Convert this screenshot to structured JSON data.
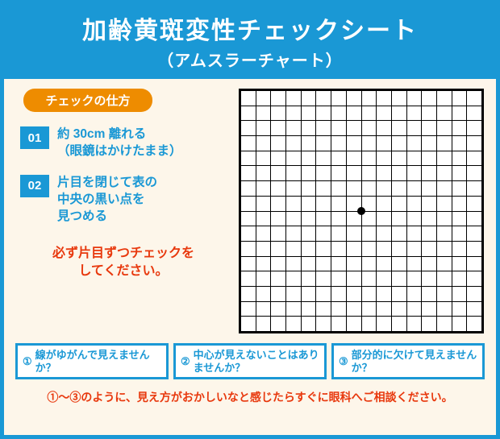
{
  "header": {
    "title": "加齢黄斑変性チェックシート",
    "subtitle": "（アムスラーチャート）"
  },
  "instructions": {
    "section_label": "チェックの仕方",
    "steps": [
      {
        "num": "01",
        "text": "約 30cm 離れる\n（眼鏡はかけたまま）"
      },
      {
        "num": "02",
        "text": "片目を閉じて表の\n中央の黒い点を\n見つめる"
      }
    ],
    "warning": "必ず片目ずつチェックを\nしてください。"
  },
  "chart": {
    "type": "grid",
    "rows": 16,
    "cols": 16,
    "background_color": "#ffffff",
    "line_color": "#000000",
    "center_dot_color": "#000000",
    "center_dot_size": 10
  },
  "questions": [
    {
      "num": "①",
      "text": "線がゆがんで見えませんか？"
    },
    {
      "num": "②",
      "text": "中心が見えないことはありませんか？"
    },
    {
      "num": "③",
      "text": "部分的に欠けて見えませんか？"
    }
  ],
  "footer": "①～③のように、見え方がおかしいなと感じたらすぐに眼科へご相談ください。",
  "colors": {
    "primary_blue": "#1a98d5",
    "accent_orange": "#ee8c00",
    "warning_red": "#e8380d",
    "cream_bg": "#fdf6ea"
  }
}
